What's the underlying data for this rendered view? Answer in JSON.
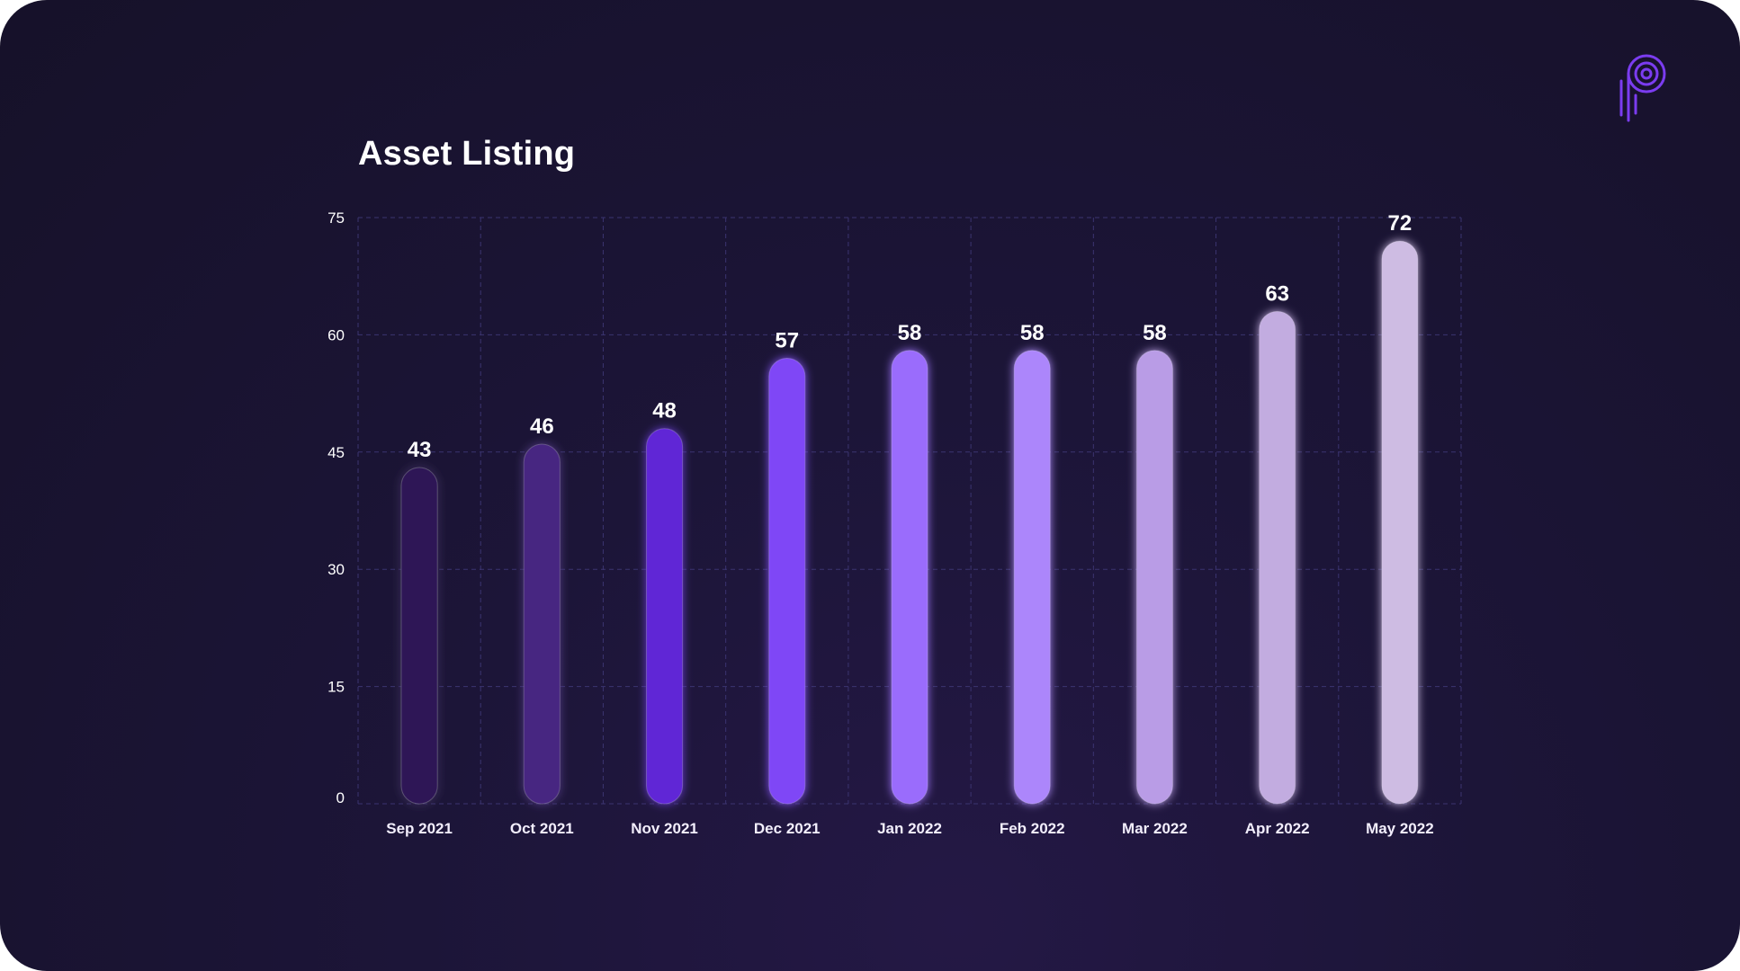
{
  "chart_data": {
    "type": "bar",
    "title": "Asset Listing",
    "categories": [
      "Sep 2021",
      "Oct 2021",
      "Nov 2021",
      "Dec 2021",
      "Jan 2022",
      "Feb 2022",
      "Mar 2022",
      "Apr 2022",
      "May 2022"
    ],
    "values": [
      43,
      46,
      48,
      57,
      58,
      58,
      58,
      63,
      72
    ],
    "ylim": [
      0,
      75
    ],
    "yticks": [
      0,
      15,
      30,
      45,
      60,
      75
    ],
    "xlabel": "",
    "ylabel": "",
    "grid": true,
    "data_labels": true,
    "bar_colors": [
      "#2e1757",
      "#472581",
      "#6126d6",
      "#7f47f6",
      "#9a6cfc",
      "#ac86fb",
      "#b99ce6",
      "#c2ace0",
      "#cebce3"
    ]
  },
  "colors": {
    "background": "#1a1433",
    "grid": "#3b3470",
    "logo": "#7b3cf0"
  },
  "logo": {
    "icon": "brand-logo-icon"
  }
}
